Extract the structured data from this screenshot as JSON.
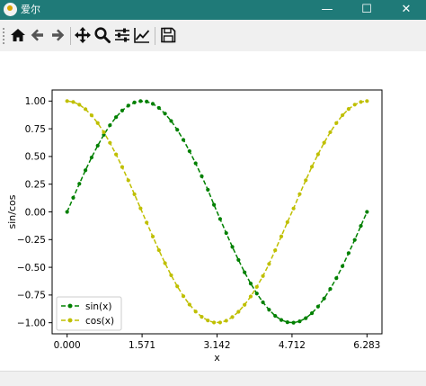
{
  "window": {
    "title": "爱尔",
    "minimize_glyph": "—",
    "maximize_glyph": "☐",
    "close_glyph": "✕"
  },
  "toolbar": {
    "buttons": [
      {
        "icon": "home-icon"
      },
      {
        "icon": "back-arrow-icon"
      },
      {
        "icon": "forward-arrow-icon"
      },
      {
        "icon": "pan-move-icon"
      },
      {
        "icon": "zoom-icon"
      },
      {
        "icon": "subplots-config-icon"
      },
      {
        "icon": "edit-axes-icon"
      },
      {
        "icon": "save-icon"
      }
    ]
  },
  "status": {
    "text": ""
  },
  "chart_data": {
    "type": "line",
    "title": "",
    "xlabel": "x",
    "ylabel": "sin/cos",
    "xlim": [
      -0.314,
      6.597
    ],
    "ylim": [
      -1.1,
      1.1
    ],
    "xticks": [
      "0.000",
      "1.571",
      "3.142",
      "4.712",
      "6.283"
    ],
    "xtick_values": [
      0,
      1.5708,
      3.1416,
      4.7124,
      6.2832
    ],
    "yticks": [
      "1.00",
      "0.75",
      "0.50",
      "0.25",
      "0.00",
      "−0.25",
      "−0.50",
      "−0.75",
      "−1.00"
    ],
    "ytick_values": [
      1.0,
      0.75,
      0.5,
      0.25,
      0.0,
      -0.25,
      -0.5,
      -0.75,
      -1.0
    ],
    "grid": false,
    "legend": "lower-left",
    "x": [
      0.0,
      0.1282,
      0.2565,
      0.3847,
      0.5129,
      0.6411,
      0.7694,
      0.8976,
      1.0258,
      1.154,
      1.2823,
      1.4105,
      1.5387,
      1.667,
      1.7952,
      1.9234,
      2.0516,
      2.1799,
      2.3081,
      2.4363,
      2.5646,
      2.6928,
      2.821,
      2.9492,
      3.0775,
      3.2057,
      3.3339,
      3.4622,
      3.5904,
      3.7186,
      3.8468,
      3.9751,
      4.1033,
      4.2315,
      4.3597,
      4.488,
      4.6162,
      4.7444,
      4.8727,
      5.0009,
      5.1291,
      5.2573,
      5.3856,
      5.5138,
      5.642,
      5.7703,
      5.8985,
      6.0267,
      6.1549,
      6.2832
    ],
    "series": [
      {
        "name": "sin(x)",
        "color": "#008000",
        "style": "dashed-with-markers",
        "values": [
          0.0,
          0.1279,
          0.2537,
          0.3753,
          0.4907,
          0.598,
          0.6956,
          0.7818,
          0.8551,
          0.9145,
          0.9587,
          0.9872,
          0.9995,
          0.9954,
          0.9749,
          0.9383,
          0.8866,
          0.8204,
          0.7411,
          0.6498,
          0.5483,
          0.4382,
          0.3214,
          0.2,
          0.064,
          -0.064,
          -0.1912,
          -0.3153,
          -0.4337,
          -0.5453,
          -0.6461,
          -0.7366,
          -0.8159,
          -0.8829,
          -0.9381,
          -0.9752,
          -0.9957,
          -0.9996,
          -0.9874,
          -0.9588,
          -0.9139,
          -0.8545,
          -0.7813,
          -0.6953,
          -0.5976,
          -0.4891,
          -0.3717,
          -0.2524,
          -0.1264,
          0.0
        ]
      },
      {
        "name": "cos(x)",
        "color": "#bfbf00",
        "style": "dashed-with-markers",
        "values": [
          1.0,
          0.9918,
          0.9673,
          0.9269,
          0.8713,
          0.8015,
          0.7184,
          0.6235,
          0.5185,
          0.4046,
          0.2845,
          0.1594,
          0.0321,
          -0.0961,
          -0.2222,
          -0.3456,
          -0.4625,
          -0.5717,
          -0.6715,
          -0.7606,
          -0.8362,
          -0.8989,
          -0.9469,
          -0.9798,
          -0.9979,
          -0.9979,
          -0.9818,
          -0.9491,
          -0.901,
          -0.8382,
          -0.7633,
          -0.6763,
          -0.5782,
          -0.4696,
          -0.3464,
          -0.2213,
          -0.0925,
          0.0309,
          0.1609,
          0.2853,
          0.4075,
          0.5194,
          0.6242,
          0.7189,
          0.8019,
          0.8722,
          0.9283,
          0.9676,
          0.992,
          1.0
        ]
      }
    ]
  }
}
